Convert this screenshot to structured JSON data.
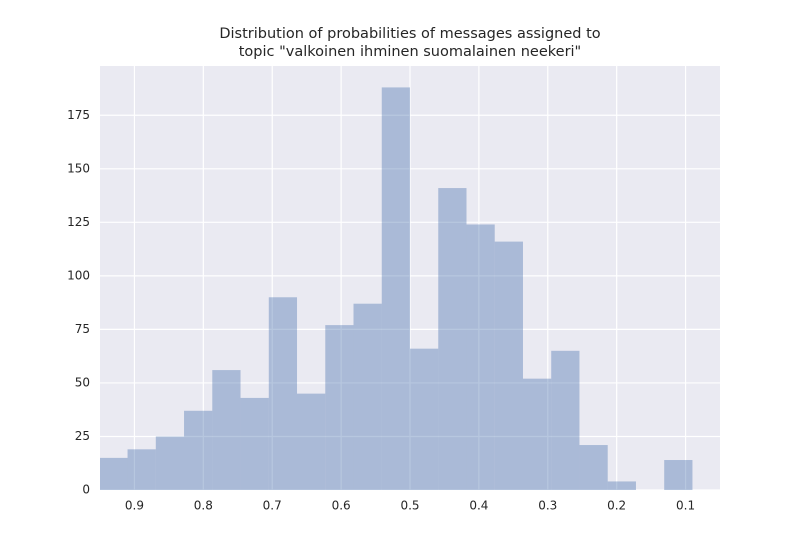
{
  "chart_data": {
    "type": "histogram",
    "title": [
      "Distribution of probabilities of messages assigned to",
      "topic \"valkoinen ihminen suomalainen neekeri\""
    ],
    "bins": [
      0.09,
      0.131,
      0.172,
      0.213,
      0.254,
      0.295,
      0.336,
      0.377,
      0.418,
      0.459,
      0.5,
      0.541,
      0.582,
      0.623,
      0.664,
      0.705,
      0.746,
      0.787,
      0.828,
      0.869,
      0.91,
      0.951
    ],
    "values": [
      14,
      0,
      4,
      21,
      65,
      52,
      116,
      124,
      141,
      66,
      188,
      87,
      77,
      45,
      90,
      43,
      56,
      37,
      25,
      19,
      15
    ],
    "color": "#4c72b0",
    "xlim": [
      0.95,
      0.05
    ],
    "xticks": [
      0.9,
      0.8,
      0.7,
      0.6,
      0.5,
      0.4,
      0.3,
      0.2,
      0.1
    ],
    "ylim": [
      0,
      198
    ],
    "yticks": [
      0,
      25,
      50,
      75,
      100,
      125,
      150,
      175
    ],
    "grid": true
  }
}
